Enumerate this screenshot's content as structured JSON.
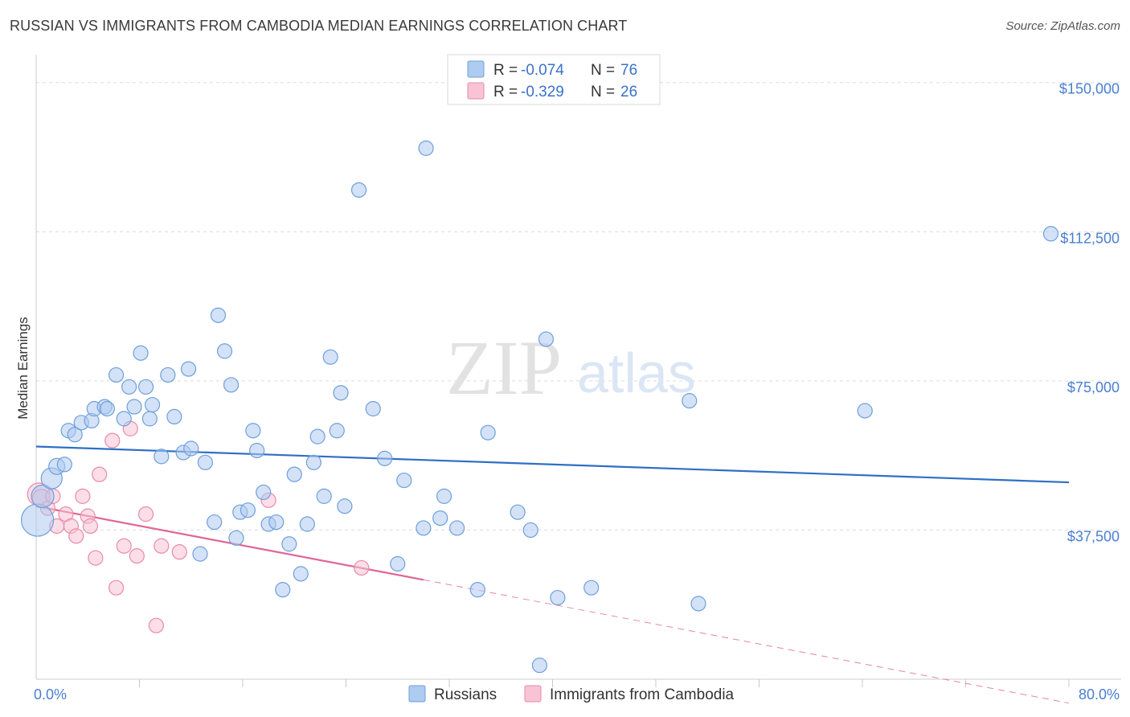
{
  "header": {
    "title": "RUSSIAN VS IMMIGRANTS FROM CAMBODIA MEDIAN EARNINGS CORRELATION CHART",
    "source": "Source: ZipAtlas.com"
  },
  "watermark": {
    "zip": "ZIP",
    "atlas": "atlas"
  },
  "colors": {
    "russians_fill": "#aecbf0",
    "russians_stroke": "#6f9fdc",
    "russians_line": "#2f6fc4",
    "cambodia_fill": "#f8c3d4",
    "cambodia_stroke": "#e98aa9",
    "cambodia_line": "#e06693",
    "grid": "#dcdcdc",
    "tick_label": "#4a7fcf"
  },
  "legend": {
    "rows": [
      {
        "r_label": "R = ",
        "r_value": "-0.074",
        "n_label": "N = ",
        "n_value": "76"
      },
      {
        "r_label": "R = ",
        "r_value": "-0.329",
        "n_label": "N = ",
        "n_value": "26"
      }
    ]
  },
  "bottom_legend": {
    "russians": "Russians",
    "cambodia": "Immigrants from Cambodia"
  },
  "chart_data": {
    "type": "scatter",
    "title": "RUSSIAN VS IMMIGRANTS FROM CAMBODIA MEDIAN EARNINGS CORRELATION CHART",
    "xlabel": "",
    "ylabel": "Median Earnings",
    "xlim": [
      0,
      80
    ],
    "ylim": [
      0,
      155000
    ],
    "x_tick_labels": {
      "min": "0.0%",
      "max": "80.0%"
    },
    "x_minor_ticks": [
      8,
      16,
      24,
      32,
      40,
      48,
      56,
      64,
      72,
      80
    ],
    "y_ticks": [
      {
        "value": 37500,
        "label": "$37,500"
      },
      {
        "value": 75000,
        "label": "$75,000"
      },
      {
        "value": 112500,
        "label": "$112,500"
      },
      {
        "value": 150000,
        "label": "$150,000"
      }
    ],
    "grid": true,
    "legend_position": "top-center",
    "series": [
      {
        "name": "Russians",
        "R": -0.074,
        "N": 76,
        "trend": {
          "x0": 0,
          "y0": 58500,
          "x1": 80,
          "y1": 49500
        },
        "points": [
          [
            0.1,
            40000,
            34
          ],
          [
            0.5,
            46000,
            22
          ],
          [
            1.2,
            50500,
            20
          ],
          [
            1.6,
            53500,
            14
          ],
          [
            2.2,
            54000,
            12
          ],
          [
            2.5,
            62500,
            12
          ],
          [
            3.0,
            61500,
            12
          ],
          [
            3.5,
            64500,
            12
          ],
          [
            4.3,
            65000,
            12
          ],
          [
            4.5,
            68000,
            12
          ],
          [
            5.3,
            68500,
            12
          ],
          [
            5.5,
            68000,
            12
          ],
          [
            6.2,
            76500,
            12
          ],
          [
            6.8,
            65500,
            12
          ],
          [
            7.2,
            73500,
            12
          ],
          [
            7.6,
            68500,
            12
          ],
          [
            8.1,
            82000,
            12
          ],
          [
            8.5,
            73500,
            12
          ],
          [
            8.8,
            65500,
            12
          ],
          [
            9.0,
            69000,
            12
          ],
          [
            9.7,
            56000,
            12
          ],
          [
            10.2,
            76500,
            12
          ],
          [
            10.7,
            66000,
            12
          ],
          [
            11.4,
            57000,
            12
          ],
          [
            11.8,
            78000,
            12
          ],
          [
            12.0,
            58000,
            12
          ],
          [
            12.7,
            31500,
            12
          ],
          [
            13.1,
            54500,
            12
          ],
          [
            13.8,
            39500,
            12
          ],
          [
            14.1,
            91500,
            12
          ],
          [
            14.6,
            82500,
            12
          ],
          [
            15.1,
            74000,
            12
          ],
          [
            15.5,
            35500,
            12
          ],
          [
            15.8,
            42000,
            12
          ],
          [
            16.4,
            42500,
            12
          ],
          [
            16.8,
            62500,
            12
          ],
          [
            17.1,
            57500,
            12
          ],
          [
            17.6,
            47000,
            12
          ],
          [
            18.0,
            39000,
            12
          ],
          [
            18.6,
            39500,
            12
          ],
          [
            19.1,
            22500,
            12
          ],
          [
            19.6,
            34000,
            12
          ],
          [
            20.0,
            51500,
            12
          ],
          [
            20.5,
            26500,
            12
          ],
          [
            21.0,
            39000,
            12
          ],
          [
            21.5,
            54500,
            12
          ],
          [
            21.8,
            61000,
            12
          ],
          [
            22.3,
            46000,
            12
          ],
          [
            22.8,
            81000,
            12
          ],
          [
            23.3,
            62500,
            12
          ],
          [
            23.6,
            72000,
            12
          ],
          [
            23.9,
            43500,
            12
          ],
          [
            25.0,
            123000,
            12
          ],
          [
            26.1,
            68000,
            12
          ],
          [
            27.0,
            55500,
            12
          ],
          [
            28.0,
            29000,
            12
          ],
          [
            28.5,
            50000,
            12
          ],
          [
            30.0,
            38000,
            12
          ],
          [
            30.2,
            133500,
            12
          ],
          [
            31.3,
            40500,
            12
          ],
          [
            31.6,
            46000,
            12
          ],
          [
            32.6,
            38000,
            12
          ],
          [
            34.2,
            22500,
            12
          ],
          [
            35.0,
            62000,
            12
          ],
          [
            37.3,
            42000,
            12
          ],
          [
            38.3,
            37500,
            12
          ],
          [
            39.0,
            3500,
            12
          ],
          [
            39.5,
            85500,
            12
          ],
          [
            40.4,
            20500,
            12
          ],
          [
            43.0,
            23000,
            12
          ],
          [
            50.6,
            70000,
            12
          ],
          [
            51.3,
            19000,
            12
          ],
          [
            64.2,
            67500,
            12
          ],
          [
            78.6,
            112000,
            12
          ]
        ]
      },
      {
        "name": "Immigrants from Cambodia",
        "R": -0.329,
        "N": 26,
        "trend": {
          "x0": 0,
          "y0": 43500,
          "x1": 30,
          "y1": 25000
        },
        "trend_dashed": {
          "x0": 30,
          "y0": 25000,
          "x1": 80,
          "y1": -6000
        },
        "points": [
          [
            0.2,
            46500,
            22
          ],
          [
            0.4,
            45500,
            16
          ],
          [
            0.9,
            43000,
            12
          ],
          [
            1.3,
            46000,
            12
          ],
          [
            1.6,
            38500,
            12
          ],
          [
            2.3,
            41500,
            12
          ],
          [
            2.7,
            38500,
            12
          ],
          [
            3.1,
            36000,
            12
          ],
          [
            3.6,
            46000,
            12
          ],
          [
            4.0,
            41000,
            12
          ],
          [
            4.2,
            38500,
            12
          ],
          [
            4.6,
            30500,
            12
          ],
          [
            4.9,
            51500,
            12
          ],
          [
            5.9,
            60000,
            12
          ],
          [
            6.2,
            23000,
            12
          ],
          [
            6.8,
            33500,
            12
          ],
          [
            7.3,
            63000,
            12
          ],
          [
            7.8,
            31000,
            12
          ],
          [
            8.5,
            41500,
            12
          ],
          [
            9.3,
            13500,
            12
          ],
          [
            9.7,
            33500,
            12
          ],
          [
            11.1,
            32000,
            12
          ],
          [
            18.0,
            45000,
            12
          ],
          [
            25.2,
            28000,
            12
          ]
        ]
      }
    ]
  }
}
